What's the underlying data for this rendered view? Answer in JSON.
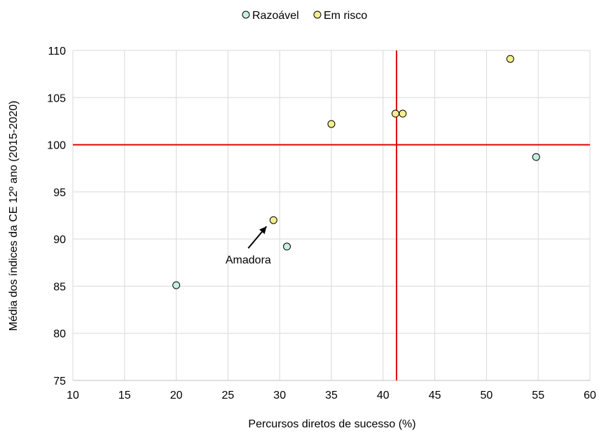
{
  "chart_data": {
    "type": "scatter",
    "title": "",
    "xlabel": "Percursos diretos de sucesso (%)",
    "ylabel": "Média dos índices da CE 12º ano (2015-2020)",
    "xlim": [
      10,
      60
    ],
    "ylim": [
      75,
      110
    ],
    "xticks": [
      10,
      15,
      20,
      25,
      30,
      35,
      40,
      45,
      50,
      55,
      60
    ],
    "yticks": [
      75,
      80,
      85,
      90,
      95,
      100,
      105,
      110
    ],
    "grid": true,
    "legend_position": "top",
    "series": [
      {
        "name": "Razoável",
        "color": "#c6efe0",
        "points": [
          {
            "x": 20.0,
            "y": 85.1
          },
          {
            "x": 30.7,
            "y": 89.2
          },
          {
            "x": 54.8,
            "y": 98.7
          }
        ]
      },
      {
        "name": "Em risco",
        "color": "#f5ee8f",
        "points": [
          {
            "x": 29.4,
            "y": 92.0
          },
          {
            "x": 35.0,
            "y": 102.2
          },
          {
            "x": 41.2,
            "y": 103.3
          },
          {
            "x": 41.9,
            "y": 103.3
          },
          {
            "x": 52.3,
            "y": 109.1
          }
        ]
      }
    ],
    "reference_lines": {
      "color": "#e00000",
      "vertical_x": 41.3,
      "horizontal_y": 100
    },
    "annotations": [
      {
        "text": "Amadora",
        "x": 29.4,
        "y": 92.0
      }
    ]
  }
}
